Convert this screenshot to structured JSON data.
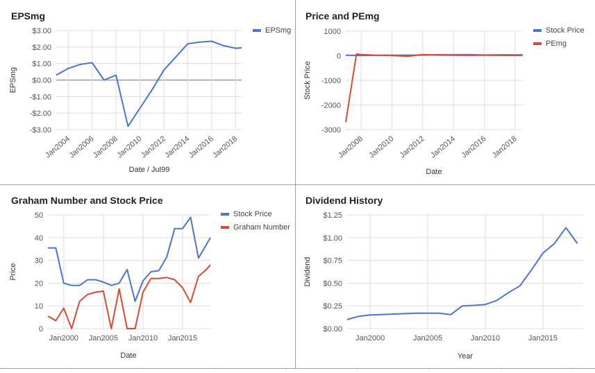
{
  "colors": {
    "blue": "#4a73d6",
    "red": "#dc4a2b",
    "grid": "#dddddd",
    "zero": "#999999",
    "text": "#555555"
  },
  "charts": {
    "eps": {
      "title": "EPSmg",
      "chart_data": {
        "type": "line",
        "title": "EPSmg",
        "xlabel": "Date / Jul99",
        "ylabel": "EPSmg",
        "ylim": [
          -3,
          3
        ],
        "yticks": [
          3,
          2,
          1,
          0,
          -1,
          -2,
          -3
        ],
        "ytick_labels": [
          "$3.00",
          "$2.00",
          "$1.00",
          "$0.00",
          "-$1.00",
          "-$2.00",
          "-$3.00"
        ],
        "xlim": [
          2003,
          2018.5
        ],
        "xticks": [
          2004,
          2006,
          2008,
          2010,
          2012,
          2014,
          2016,
          2018
        ],
        "xtick_labels": [
          "Jan2004",
          "Jan2006",
          "Jan2008",
          "Jan2010",
          "Jan2012",
          "Jan2014",
          "Jan2016",
          "Jan2018"
        ],
        "legend_position": "top-right",
        "series": [
          {
            "name": "EPSmg",
            "color": "#4a73d6",
            "x": [
              2003,
              2004,
              2005,
              2006,
              2007,
              2008,
              2009,
              2010,
              2011,
              2012,
              2013,
              2014,
              2015,
              2016,
              2017,
              2018,
              2018.5
            ],
            "y": [
              0.3,
              0.7,
              0.95,
              1.05,
              0.0,
              0.3,
              -2.8,
              -1.7,
              -0.6,
              0.6,
              1.4,
              2.2,
              2.3,
              2.35,
              2.08,
              1.92,
              1.95
            ]
          }
        ]
      }
    },
    "pe": {
      "title": "Price and PEmg",
      "chart_data": {
        "type": "line",
        "title": "Price and PEmg",
        "xlabel": "Date",
        "ylabel": "Stock Price",
        "ylim": [
          -3000,
          1000
        ],
        "yticks": [
          1000,
          0,
          -1000,
          -2000,
          -3000
        ],
        "ytick_labels": [
          "1000",
          "0",
          "-1000",
          "-2000",
          "-3000"
        ],
        "xlim": [
          2007,
          2018.5
        ],
        "xticks": [
          2008,
          2010,
          2012,
          2014,
          2016,
          2018
        ],
        "xtick_labels": [
          "Jan2008",
          "Jan2010",
          "Jan2012",
          "Jan2014",
          "Jan2016",
          "Jan2018"
        ],
        "legend_position": "top-right",
        "series": [
          {
            "name": "Stock Price",
            "color": "#4a73d6",
            "x": [
              2007,
              2008,
              2009,
              2010,
              2011,
              2012,
              2013,
              2014,
              2015,
              2016,
              2017,
              2018,
              2018.5
            ],
            "y": [
              26,
              12,
              21,
              25,
              26,
              32,
              44,
              44,
              49,
              31,
              40,
              38,
              40
            ]
          },
          {
            "name": "PEmg",
            "color": "#dc4a2b",
            "x": [
              2007,
              2007.7,
              2008,
              2009,
              2010,
              2011,
              2012,
              2013,
              2014,
              2015,
              2016,
              2017,
              2018,
              2018.5
            ],
            "y": [
              -2700,
              80,
              50,
              20,
              10,
              -20,
              50,
              30,
              25,
              20,
              25,
              20,
              15,
              20
            ]
          }
        ]
      }
    },
    "graham": {
      "title": "Graham Number and Stock Price",
      "chart_data": {
        "type": "line",
        "title": "Graham Number and Stock Price",
        "xlabel": "Date",
        "ylabel": "Price",
        "ylim": [
          0,
          50
        ],
        "yticks": [
          50,
          40,
          30,
          20,
          10,
          0
        ],
        "ytick_labels": [
          "50",
          "40",
          "30",
          "20",
          "10",
          "0"
        ],
        "xlim": [
          1998,
          2018.5
        ],
        "xticks": [
          2000,
          2005,
          2010,
          2015
        ],
        "xtick_labels": [
          "Jan2000",
          "Jan2005",
          "Jan2010",
          "Jan2015"
        ],
        "legend_position": "top-right",
        "series": [
          {
            "name": "Stock Price",
            "color": "#4a73d6",
            "x": [
              1998,
              1999,
              2000,
              2001,
              2002,
              2003,
              2004,
              2005,
              2006,
              2007,
              2008,
              2009,
              2010,
              2011,
              2012,
              2013,
              2014,
              2015,
              2016,
              2017,
              2018,
              2018.5
            ],
            "y": [
              35.5,
              35.5,
              20,
              19,
              19,
              21.5,
              21.5,
              20.5,
              19,
              20,
              26,
              12,
              21,
              25,
              25.5,
              31.5,
              44,
              44,
              49,
              31,
              37,
              40
            ]
          },
          {
            "name": "Graham Number",
            "color": "#dc4a2b",
            "x": [
              1998,
              1999,
              2000,
              2001,
              2002,
              2003,
              2004,
              2005,
              2006,
              2007,
              2008,
              2009,
              2010,
              2011,
              2012,
              2013,
              2014,
              2015,
              2016,
              2017,
              2018,
              2018.5
            ],
            "y": [
              5.5,
              3.5,
              9,
              0,
              12,
              15,
              16,
              16.5,
              0,
              17.5,
              0,
              0,
              16,
              22,
              22,
              22.5,
              21.5,
              18,
              11.5,
              23,
              26,
              28
            ]
          }
        ]
      }
    },
    "dividend": {
      "title": "Dividend History",
      "chart_data": {
        "type": "line",
        "title": "Dividend History",
        "xlabel": "Year",
        "ylabel": "Dividend",
        "ylim": [
          0,
          1.25
        ],
        "yticks": [
          1.25,
          1.0,
          0.75,
          0.5,
          0.25,
          0.0
        ],
        "ytick_labels": [
          "$1.25",
          "$1.00",
          "$0.75",
          "$0.50",
          "$0.25",
          "$0.00"
        ],
        "xlim": [
          1998,
          2018.5
        ],
        "xticks": [
          2000,
          2005,
          2010,
          2015
        ],
        "xtick_labels": [
          "Jan2000",
          "Jan2005",
          "Jan2010",
          "Jan2015"
        ],
        "series": [
          {
            "name": "Dividend",
            "color": "#4a73d6",
            "x": [
              1998,
              1999,
              2000,
              2001,
              2002,
              2003,
              2004,
              2005,
              2006,
              2007,
              2008,
              2009,
              2010,
              2011,
              2012,
              2013,
              2014,
              2015,
              2016,
              2017,
              2018
            ],
            "y": [
              0.1,
              0.135,
              0.15,
              0.155,
              0.16,
              0.165,
              0.17,
              0.17,
              0.17,
              0.155,
              0.25,
              0.255,
              0.265,
              0.31,
              0.395,
              0.47,
              0.645,
              0.83,
              0.935,
              1.11,
              0.935
            ]
          }
        ]
      }
    }
  }
}
